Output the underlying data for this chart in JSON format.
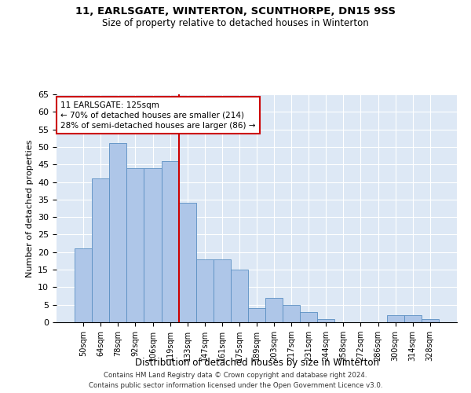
{
  "title1": "11, EARLSGATE, WINTERTON, SCUNTHORPE, DN15 9SS",
  "title2": "Size of property relative to detached houses in Winterton",
  "xlabel": "Distribution of detached houses by size in Winterton",
  "ylabel": "Number of detached properties",
  "categories": [
    "50sqm",
    "64sqm",
    "78sqm",
    "92sqm",
    "106sqm",
    "119sqm",
    "133sqm",
    "147sqm",
    "161sqm",
    "175sqm",
    "189sqm",
    "203sqm",
    "217sqm",
    "231sqm",
    "244sqm",
    "258sqm",
    "272sqm",
    "286sqm",
    "300sqm",
    "314sqm",
    "328sqm"
  ],
  "values": [
    21,
    41,
    51,
    44,
    44,
    46,
    34,
    18,
    18,
    15,
    4,
    7,
    5,
    3,
    1,
    0,
    0,
    0,
    2,
    2,
    1
  ],
  "bar_color": "#aec6e8",
  "bar_edge_color": "#5a8fc2",
  "background_color": "#dde8f5",
  "vline_color": "#cc0000",
  "vline_x_index": 6,
  "annotation_box_text": "11 EARLSGATE: 125sqm\n← 70% of detached houses are smaller (214)\n28% of semi-detached houses are larger (86) →",
  "annotation_box_color": "#cc0000",
  "footer": "Contains HM Land Registry data © Crown copyright and database right 2024.\nContains public sector information licensed under the Open Government Licence v3.0.",
  "ylim": [
    0,
    65
  ],
  "yticks": [
    0,
    5,
    10,
    15,
    20,
    25,
    30,
    35,
    40,
    45,
    50,
    55,
    60,
    65
  ]
}
